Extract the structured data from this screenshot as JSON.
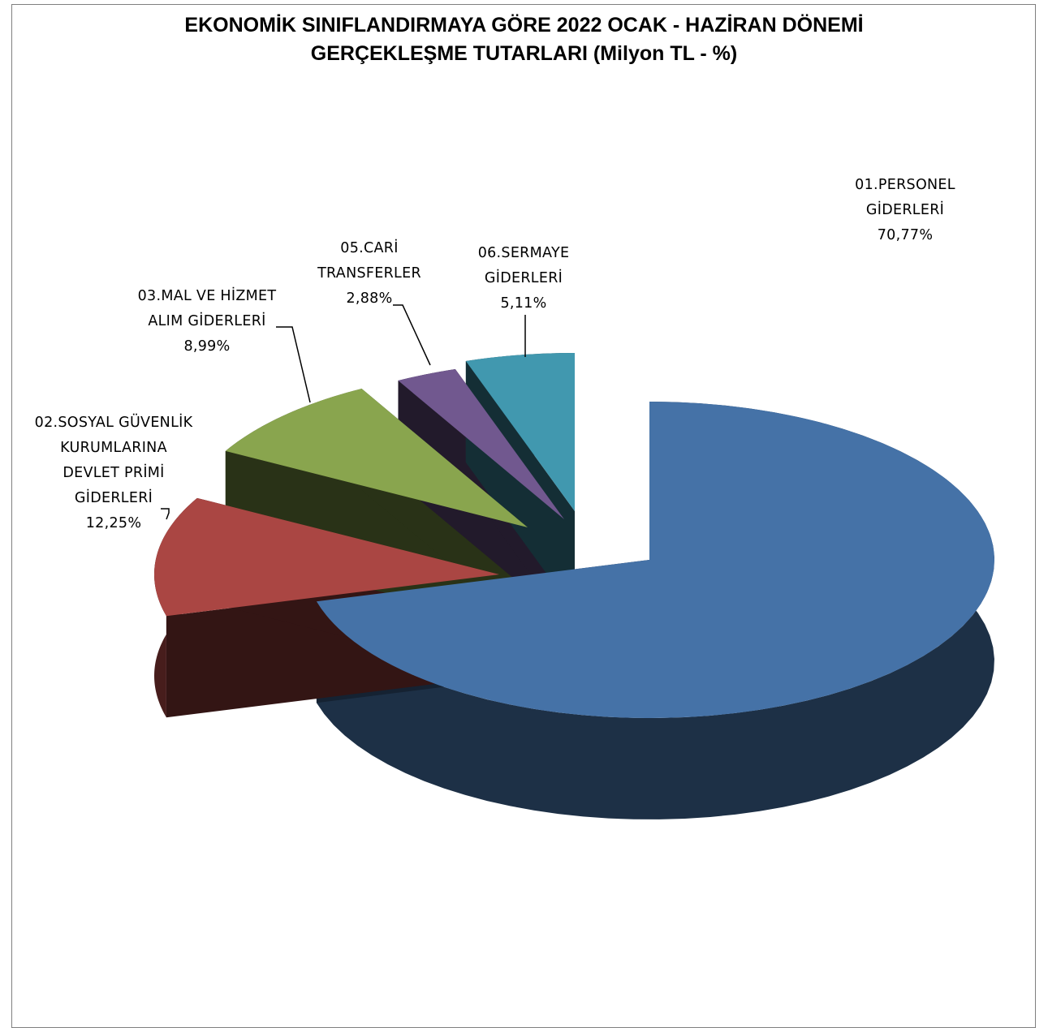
{
  "chart_data": {
    "type": "pie",
    "title_line1": "EKONOMİK SINIFLANDIRMAYA GÖRE 2022 OCAK - HAZİRAN DÖNEMİ",
    "title_line2": "GERÇEKLEŞME TUTARLARI (Milyon TL - %)",
    "slices": [
      {
        "key": "personel",
        "label_lines": [
          "01.PERSONEL",
          "GİDERLERİ"
        ],
        "percent_text": "70,77%",
        "value": 70.77,
        "color": "#4572a7"
      },
      {
        "key": "sgk",
        "label_lines": [
          "02.SOSYAL GÜVENLİK",
          "KURUMLARINA",
          "DEVLET PRİMİ",
          "GİDERLERİ"
        ],
        "percent_text": "12,25%",
        "value": 12.25,
        "color": "#aa4643"
      },
      {
        "key": "mal_hizmet",
        "label_lines": [
          "03.MAL VE HİZMET",
          "ALIM GİDERLERİ"
        ],
        "percent_text": "8,99%",
        "value": 8.99,
        "color": "#89a54e"
      },
      {
        "key": "cari",
        "label_lines": [
          "05.CARİ",
          "TRANSFERLER"
        ],
        "percent_text": "2,88%",
        "value": 2.88,
        "color": "#71588f"
      },
      {
        "key": "sermaye",
        "label_lines": [
          "06.SERMAYE",
          "GİDERLERİ"
        ],
        "percent_text": "5,11%",
        "value": 5.11,
        "color": "#4198af"
      }
    ]
  }
}
